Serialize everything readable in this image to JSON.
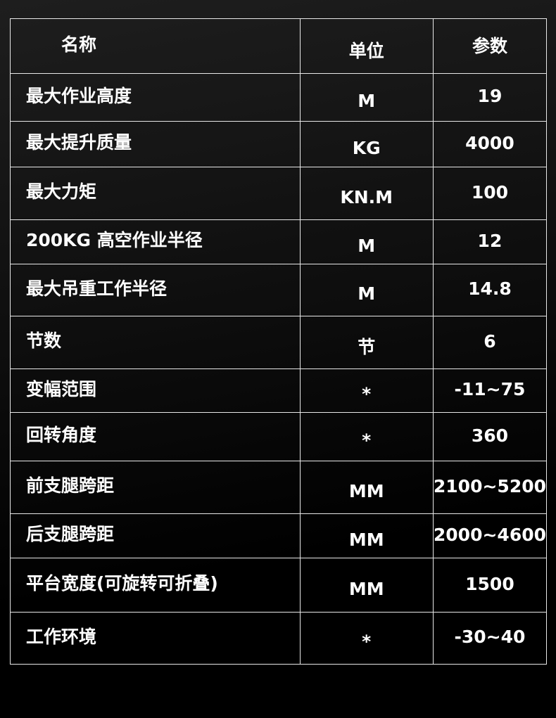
{
  "header": {
    "name": "名称",
    "unit": "单位",
    "param": "参数"
  },
  "rows": [
    {
      "name": "最大作业高度",
      "unit": "M",
      "param": "19"
    },
    {
      "name": "最大提升质量",
      "unit": "KG",
      "param": "4000"
    },
    {
      "name": "最大力矩",
      "unit": "KN.M",
      "param": "100"
    },
    {
      "name": "200KG 高空作业半径",
      "unit": "M",
      "param": "12"
    },
    {
      "name": "最大吊重工作半径",
      "unit": "M",
      "param": "14.8"
    },
    {
      "name": "节数",
      "unit": "节",
      "param": "6"
    },
    {
      "name": "变幅范围",
      "unit": "*",
      "param": "-11~75"
    },
    {
      "name": "回转角度",
      "unit": "*",
      "param": "360"
    },
    {
      "name": "前支腿跨距",
      "unit": "MM",
      "param": "2100~5200"
    },
    {
      "name": "后支腿跨距",
      "unit": "MM",
      "param": "2000~4600"
    },
    {
      "name": "平台宽度(可旋转可折叠)",
      "unit": "MM",
      "param": "1500"
    },
    {
      "name": "工作环境",
      "unit": "*",
      "param": "-30~40"
    }
  ]
}
